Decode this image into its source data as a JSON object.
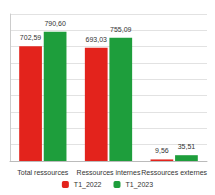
{
  "chart_data": {
    "type": "bar",
    "categories": [
      "Total ressources",
      "Ressources internes",
      "Ressources externes"
    ],
    "series": [
      {
        "name": "T1_2022",
        "color": "#e3231c",
        "values": [
          702.59,
          693.03,
          9.56
        ],
        "value_labels": [
          "702,59",
          "693,03",
          "9,56"
        ]
      },
      {
        "name": "T1_2023",
        "color": "#1e9e3c",
        "values": [
          790.6,
          755.09,
          35.51
        ],
        "value_labels": [
          "790,60",
          "755,09",
          "35,51"
        ]
      }
    ],
    "ylim": [
      0,
      900
    ],
    "yticks": [
      0,
      100,
      200,
      300,
      400,
      500,
      600,
      700,
      800,
      900
    ],
    "grid": true,
    "legend": "bottom",
    "data_labels": true,
    "tick_labels": "x"
  }
}
